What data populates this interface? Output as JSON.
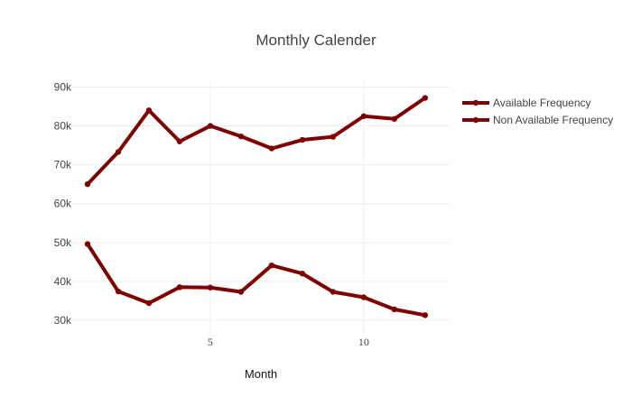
{
  "chart_data": {
    "type": "line",
    "title": "Monthly Calender",
    "xlabel": "Month",
    "ylabel": "",
    "x": [
      1,
      2,
      3,
      4,
      5,
      6,
      7,
      8,
      9,
      10,
      11,
      12
    ],
    "xlim": [
      0.5,
      12.8
    ],
    "ylim": [
      26500,
      91500
    ],
    "xticks": [
      5,
      10
    ],
    "xtick_labels": [
      "5",
      "10"
    ],
    "yticks": [
      30000,
      40000,
      50000,
      60000,
      70000,
      80000,
      90000
    ],
    "ytick_labels": [
      "30k",
      "40k",
      "50k",
      "60k",
      "70k",
      "80k",
      "90k"
    ],
    "grid": true,
    "legend_position": "top-right",
    "series": [
      {
        "name": "Available Frequency",
        "color": "#7f0000",
        "values": [
          65000,
          73300,
          84000,
          76000,
          80000,
          77300,
          74200,
          76400,
          77200,
          82500,
          81800,
          87200
        ]
      },
      {
        "name": "Non Available Frequency",
        "color": "#7f0000",
        "values": [
          49600,
          37400,
          34400,
          38500,
          38400,
          37300,
          44100,
          42000,
          37300,
          35900,
          32800,
          31300
        ]
      }
    ]
  }
}
